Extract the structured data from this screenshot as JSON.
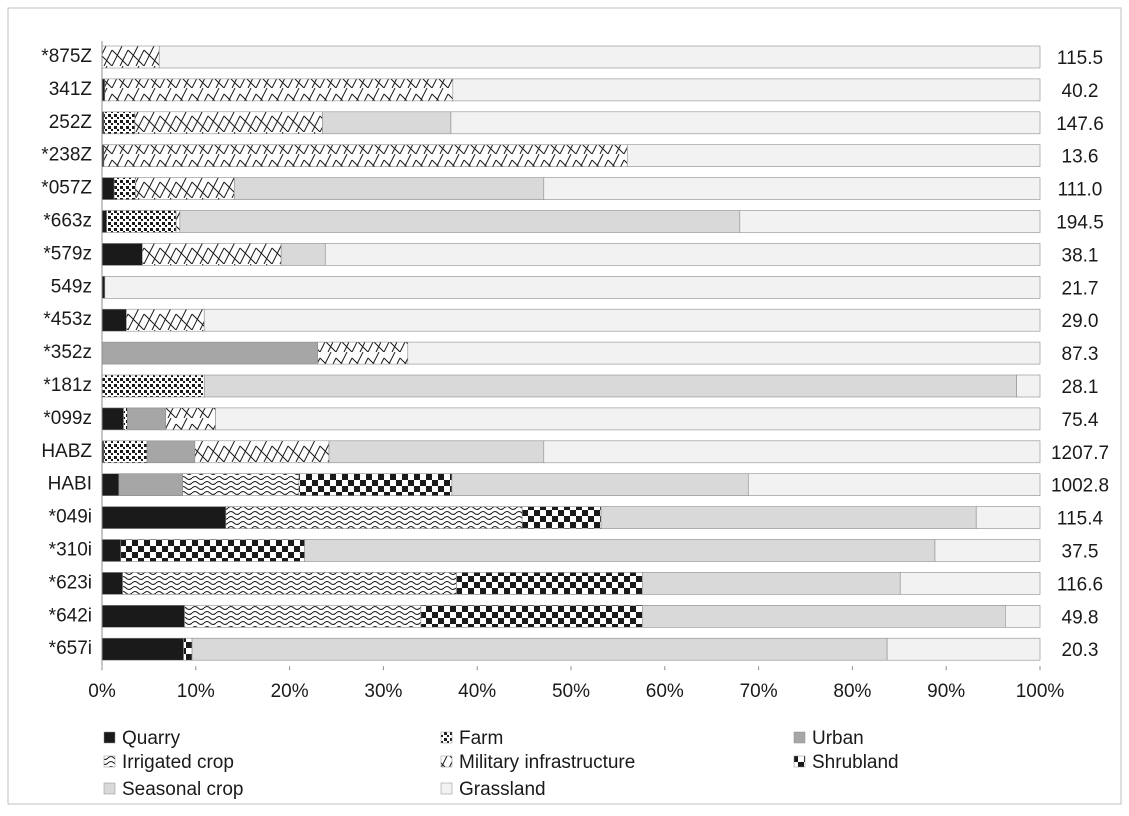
{
  "chart_data": {
    "type": "stacked_bar_100",
    "categories": [
      "*875Z",
      "341Z",
      "252Z",
      "*238Z",
      "*057Z",
      "*663z",
      "*579z",
      "549z",
      "*453z",
      "*352z",
      "*181z",
      "*099z",
      "HABZ",
      "HABI",
      "*049i",
      "*310i",
      "*623i",
      "*642i",
      "*657i"
    ],
    "series": [
      {
        "name": "Quarry",
        "color": "#1a1a1a",
        "pattern": "solid",
        "values": [
          0,
          0.3,
          0.2,
          0.2,
          1.3,
          0.5,
          4.3,
          0.3,
          2.6,
          0,
          0,
          2.3,
          0.2,
          1.8,
          13.2,
          2,
          2.2,
          8.8,
          8.7
        ]
      },
      {
        "name": "Farm",
        "color": "#1a1a1a",
        "pattern": "dots",
        "values": [
          0,
          0,
          3.3,
          0,
          2.3,
          7.4,
          0,
          0,
          0,
          0,
          10.9,
          0.4,
          4.6,
          0,
          0,
          0,
          0,
          0,
          0
        ]
      },
      {
        "name": "Urban",
        "color": "#a6a6a6",
        "pattern": "solid",
        "values": [
          0,
          0,
          0,
          0,
          0,
          0,
          0,
          0,
          0,
          23,
          0,
          4.1,
          5.1,
          6.8,
          0,
          0,
          0,
          0,
          0
        ]
      },
      {
        "name": "Irrigated crop",
        "color": "#1a1a1a",
        "pattern": "wave",
        "values": [
          0,
          0,
          0,
          0,
          0,
          0,
          0,
          0,
          0,
          0,
          0,
          0,
          0,
          12.4,
          31.6,
          0,
          35.6,
          25.2,
          0
        ]
      },
      {
        "name": "Military infrastructure",
        "color": "#1a1a1a",
        "pattern": "diagonal",
        "values": [
          6.1,
          37.1,
          20,
          55.8,
          10.5,
          0.4,
          14.8,
          0,
          8.3,
          9.6,
          0,
          5.3,
          14.3,
          0,
          0,
          0,
          0,
          0,
          0
        ]
      },
      {
        "name": "Shrubland",
        "color": "#1a1a1a",
        "pattern": "checker",
        "values": [
          0,
          0,
          0,
          0,
          0,
          0,
          0,
          0,
          0,
          0,
          0,
          0,
          0,
          16.3,
          8.4,
          19.6,
          19.8,
          23.6,
          0.9
        ]
      },
      {
        "name": "Seasonal crop",
        "color": "#d9d9d9",
        "pattern": "solid",
        "values": [
          0,
          0,
          13.7,
          0,
          33,
          59.7,
          4.7,
          0,
          0,
          0,
          86.6,
          0,
          22.9,
          31.6,
          40,
          67.2,
          27.5,
          38.7,
          74.1
        ]
      },
      {
        "name": "Grassland",
        "color": "#f2f2f2",
        "pattern": "solid",
        "values": [
          93.9,
          62.6,
          62.8,
          44,
          52.9,
          32,
          76.2,
          99.7,
          89.1,
          67.4,
          2.5,
          87.9,
          52.9,
          31.1,
          6.8,
          11.2,
          14.9,
          3.7,
          16.3
        ]
      }
    ],
    "totals": [
      {
        "value": 115.5,
        "label": "115.5"
      },
      {
        "value": 40.2,
        "label": "40.2"
      },
      {
        "value": 147.6,
        "label": "147.6"
      },
      {
        "value": 13.6,
        "label": "13.6"
      },
      {
        "value": 111.0,
        "label": "111.0"
      },
      {
        "value": 194.5,
        "label": "194.5"
      },
      {
        "value": 38.1,
        "label": "38.1"
      },
      {
        "value": 21.7,
        "label": "21.7"
      },
      {
        "value": 29.0,
        "label": "29.0"
      },
      {
        "value": 87.3,
        "label": "87.3"
      },
      {
        "value": 28.1,
        "label": "28.1"
      },
      {
        "value": 75.4,
        "label": "75.4"
      },
      {
        "value": 1207.7,
        "label": "1207.7"
      },
      {
        "value": 1002.8,
        "label": "1002.8"
      },
      {
        "value": 115.4,
        "label": "115.4"
      },
      {
        "value": 37.5,
        "label": "37.5"
      },
      {
        "value": 116.6,
        "label": "116.6"
      },
      {
        "value": 49.8,
        "label": "49.8"
      },
      {
        "value": 20.3,
        "label": "20.3"
      }
    ],
    "xlim": [
      0,
      100
    ],
    "xticks": [
      {
        "value": 0,
        "label": "0%"
      },
      {
        "value": 10,
        "label": "10%"
      },
      {
        "value": 20,
        "label": "20%"
      },
      {
        "value": 30,
        "label": "30%"
      },
      {
        "value": 40,
        "label": "40%"
      },
      {
        "value": 50,
        "label": "50%"
      },
      {
        "value": 60,
        "label": "60%"
      },
      {
        "value": 70,
        "label": "70%"
      },
      {
        "value": 80,
        "label": "80%"
      },
      {
        "value": 90,
        "label": "90%"
      },
      {
        "value": 100,
        "label": "100%"
      }
    ]
  }
}
